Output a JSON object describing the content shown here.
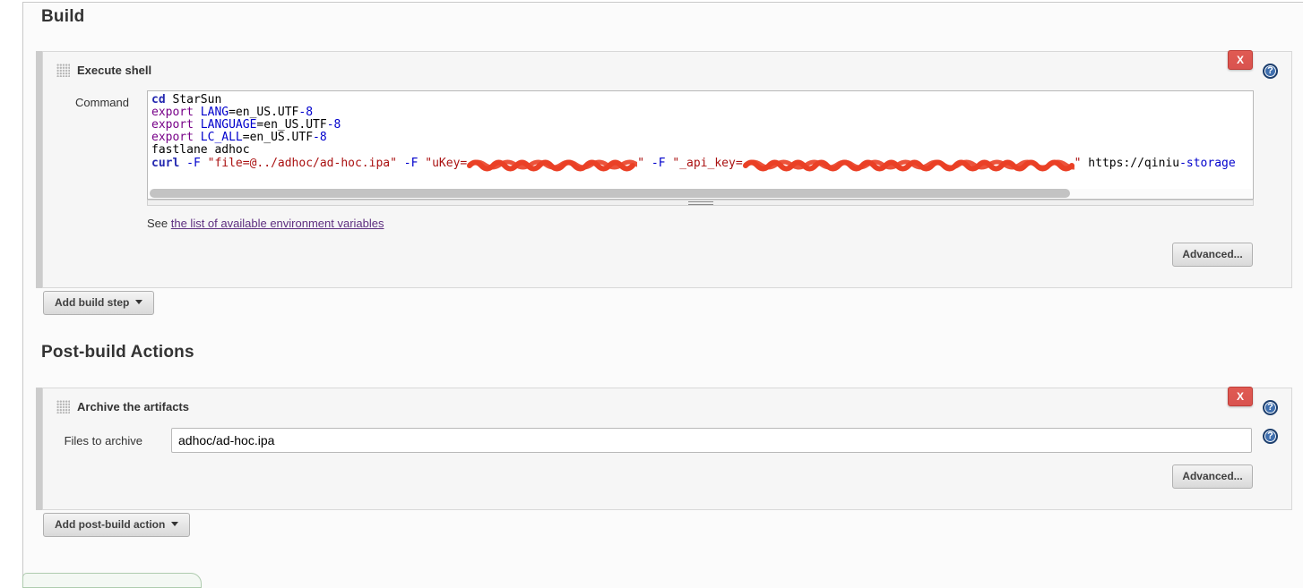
{
  "headings": {
    "build": "Build",
    "post_build": "Post-build Actions"
  },
  "icons": {
    "help": "?",
    "close": "X"
  },
  "build_step": {
    "title": "Execute shell",
    "command_label": "Command",
    "env_note_prefix": "See ",
    "env_note_link": "the list of available environment variables",
    "advanced_label": "Advanced...",
    "command_lines": [
      [
        {
          "t": "cd",
          "c": "b"
        },
        {
          "t": " StarSun"
        }
      ],
      [
        {
          "t": "export",
          "c": "k"
        },
        {
          "t": " "
        },
        {
          "t": "LANG",
          "c": "v"
        },
        {
          "t": "=en_US.UTF"
        },
        {
          "t": "-8",
          "c": "v"
        }
      ],
      [
        {
          "t": "export",
          "c": "k"
        },
        {
          "t": " "
        },
        {
          "t": "LANGUAGE",
          "c": "v"
        },
        {
          "t": "=en_US.UTF"
        },
        {
          "t": "-8",
          "c": "v"
        }
      ],
      [
        {
          "t": "export",
          "c": "k"
        },
        {
          "t": " "
        },
        {
          "t": "LC_ALL",
          "c": "v"
        },
        {
          "t": "=en_US.UTF"
        },
        {
          "t": "-8",
          "c": "v"
        }
      ],
      [
        {
          "t": "fastlane adhoc"
        }
      ],
      [
        {
          "t": "curl",
          "c": "b"
        },
        {
          "t": " "
        },
        {
          "t": "-F",
          "c": "v"
        },
        {
          "t": " "
        },
        {
          "t": "\"file=@../adhoc/ad-hoc.ipa\"",
          "c": "s"
        },
        {
          "t": " "
        },
        {
          "t": "-F",
          "c": "v"
        },
        {
          "t": " "
        },
        {
          "t": "\"uKey=",
          "c": "s"
        },
        {
          "redact": 190
        },
        {
          "t": "\"",
          "c": "s"
        },
        {
          "t": " "
        },
        {
          "t": "-F",
          "c": "v"
        },
        {
          "t": " "
        },
        {
          "t": "\"_api_key=",
          "c": "s"
        },
        {
          "redact": 370
        },
        {
          "t": "\"",
          "c": "s"
        },
        {
          "t": " https://qiniu"
        },
        {
          "t": "-storage",
          "c": "v"
        }
      ]
    ]
  },
  "add_build_step_label": "Add build step",
  "post_build_step": {
    "title": "Archive the artifacts",
    "files_label": "Files to archive",
    "files_value": "adhoc/ad-hoc.ipa",
    "advanced_label": "Advanced..."
  },
  "add_post_build_label": "Add post-build action",
  "colors": {
    "close_button": "#d9534f",
    "help_icon": "#3f6fae",
    "redact_stroke": "#ea4026",
    "link_visited": "#5e2f80",
    "code_builtin": "#2428b0",
    "code_keyword": "#770088",
    "code_variable": "#0000cc",
    "code_string": "#aa1111"
  }
}
